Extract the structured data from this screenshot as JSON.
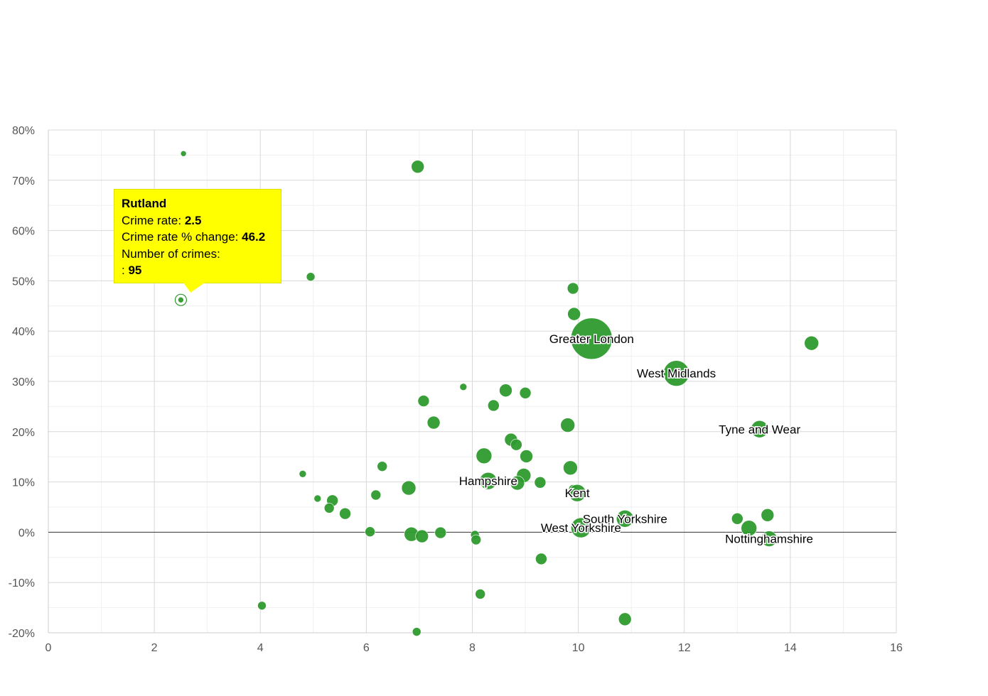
{
  "chart_data": {
    "type": "scatter",
    "title": "",
    "xlabel": "",
    "ylabel": "",
    "xlim": [
      0,
      16
    ],
    "ylim": [
      -20,
      80
    ],
    "x_ticks": [
      "0",
      "2",
      "4",
      "6",
      "8",
      "10",
      "12",
      "14",
      "16"
    ],
    "y_ticks": [
      "-20%",
      "-10%",
      "0%",
      "10%",
      "20%",
      "30%",
      "40%",
      "50%",
      "60%",
      "70%",
      "80%"
    ],
    "bubble_color": "#2e9a2e",
    "points": [
      {
        "x": 2.5,
        "y": 46.2,
        "r": 4,
        "label": "Rutland",
        "highlight": true
      },
      {
        "x": 2.55,
        "y": 75.3,
        "r": 4
      },
      {
        "x": 6.97,
        "y": 72.7,
        "r": 9
      },
      {
        "x": 4.95,
        "y": 50.8,
        "r": 6
      },
      {
        "x": 9.9,
        "y": 48.5,
        "r": 8
      },
      {
        "x": 9.92,
        "y": 43.4,
        "r": 9
      },
      {
        "x": 10.25,
        "y": 38.5,
        "r": 29,
        "label": "Greater London"
      },
      {
        "x": 14.4,
        "y": 37.6,
        "r": 10
      },
      {
        "x": 11.85,
        "y": 31.6,
        "r": 18,
        "label": "West Midlands"
      },
      {
        "x": 7.83,
        "y": 28.9,
        "r": 5
      },
      {
        "x": 8.63,
        "y": 28.2,
        "r": 9
      },
      {
        "x": 9.0,
        "y": 27.7,
        "r": 8
      },
      {
        "x": 7.08,
        "y": 26.1,
        "r": 8
      },
      {
        "x": 8.4,
        "y": 25.2,
        "r": 8
      },
      {
        "x": 7.27,
        "y": 21.8,
        "r": 9
      },
      {
        "x": 9.8,
        "y": 21.3,
        "r": 10
      },
      {
        "x": 13.42,
        "y": 20.5,
        "r": 12,
        "label": "Tyne and Wear"
      },
      {
        "x": 8.73,
        "y": 18.4,
        "r": 9
      },
      {
        "x": 8.83,
        "y": 17.4,
        "r": 8
      },
      {
        "x": 8.22,
        "y": 15.2,
        "r": 11
      },
      {
        "x": 9.02,
        "y": 15.1,
        "r": 9
      },
      {
        "x": 6.3,
        "y": 13.1,
        "r": 7
      },
      {
        "x": 9.85,
        "y": 12.8,
        "r": 10
      },
      {
        "x": 4.8,
        "y": 11.6,
        "r": 5
      },
      {
        "x": 8.97,
        "y": 11.3,
        "r": 10
      },
      {
        "x": 8.3,
        "y": 10.2,
        "r": 12,
        "label": "Hampshire"
      },
      {
        "x": 9.28,
        "y": 9.9,
        "r": 8
      },
      {
        "x": 8.85,
        "y": 9.8,
        "r": 10
      },
      {
        "x": 6.8,
        "y": 8.8,
        "r": 10
      },
      {
        "x": 9.9,
        "y": 8.6,
        "r": 6
      },
      {
        "x": 9.98,
        "y": 7.8,
        "r": 12,
        "label": "Kent"
      },
      {
        "x": 6.18,
        "y": 7.4,
        "r": 7
      },
      {
        "x": 5.08,
        "y": 6.7,
        "r": 5
      },
      {
        "x": 5.36,
        "y": 6.3,
        "r": 8
      },
      {
        "x": 5.3,
        "y": 4.8,
        "r": 7
      },
      {
        "x": 5.6,
        "y": 3.7,
        "r": 8
      },
      {
        "x": 13.57,
        "y": 3.4,
        "r": 9
      },
      {
        "x": 10.88,
        "y": 2.7,
        "r": 12,
        "label": "South Yorkshire"
      },
      {
        "x": 13.0,
        "y": 2.7,
        "r": 8
      },
      {
        "x": 10.05,
        "y": 0.9,
        "r": 14,
        "label": "West Yorkshire"
      },
      {
        "x": 13.22,
        "y": 0.8,
        "r": 11
      },
      {
        "x": 6.07,
        "y": 0.1,
        "r": 7
      },
      {
        "x": 7.4,
        "y": -0.1,
        "r": 8
      },
      {
        "x": 6.85,
        "y": -0.4,
        "r": 10
      },
      {
        "x": 8.05,
        "y": -0.5,
        "r": 6
      },
      {
        "x": 7.05,
        "y": -0.8,
        "r": 9
      },
      {
        "x": 13.6,
        "y": -1.3,
        "r": 11,
        "label": "Nottinghamshire"
      },
      {
        "x": 8.07,
        "y": -1.5,
        "r": 7
      },
      {
        "x": 9.3,
        "y": -5.3,
        "r": 8
      },
      {
        "x": 8.15,
        "y": -12.3,
        "r": 7
      },
      {
        "x": 4.03,
        "y": -14.6,
        "r": 6
      },
      {
        "x": 10.88,
        "y": -17.3,
        "r": 9
      },
      {
        "x": 6.95,
        "y": -19.8,
        "r": 6
      }
    ]
  },
  "tooltip": {
    "name": "Rutland",
    "rate_label": "Crime rate:",
    "rate_value": "2.5",
    "change_label": "Crime rate % change:",
    "change_value": "46.2",
    "count_label": "Number of crimes:",
    "count_prefix": ":",
    "count_value": "95"
  }
}
